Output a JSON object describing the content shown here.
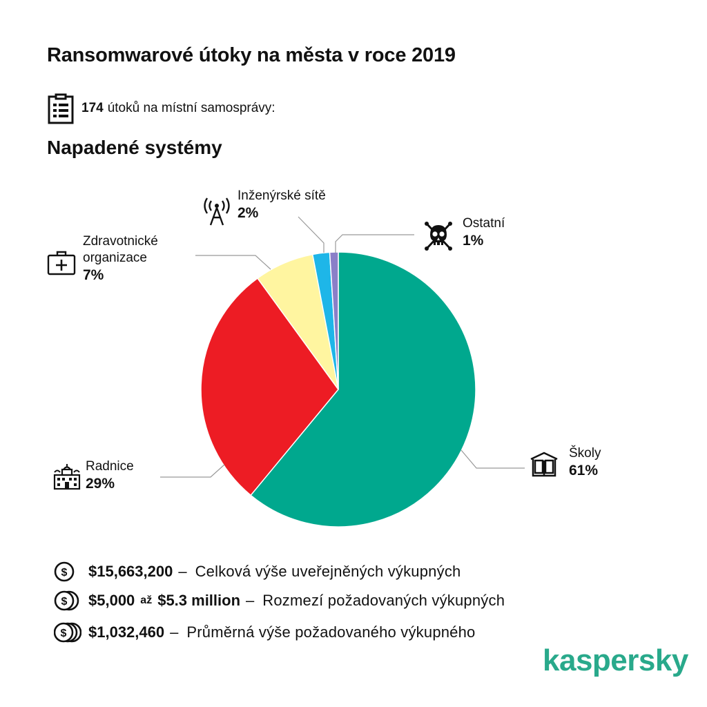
{
  "header": {
    "title": "Ransomwarové útoky na města v roce 2019",
    "attacks_count": "174",
    "attacks_text": "útoků na místní samosprávy:",
    "section_title": "Napadené systémy"
  },
  "chart_data": {
    "type": "pie",
    "start_angle_deg": 0,
    "direction": "clockwise",
    "slices": [
      {
        "label": "Školy",
        "value": 61,
        "pct_label": "61%",
        "color": "#00a88e",
        "icon": "book-icon"
      },
      {
        "label": "Radnice",
        "value": 29,
        "pct_label": "29%",
        "color": "#ed1c24",
        "icon": "city-hall-icon"
      },
      {
        "label": "Zdravotnické organizace",
        "label_lines": [
          "Zdravotnické",
          "organizace"
        ],
        "value": 7,
        "pct_label": "7%",
        "color": "#fff5a0",
        "icon": "first-aid-kit-icon"
      },
      {
        "label": "Inženýrské sítě",
        "value": 2,
        "pct_label": "2%",
        "color": "#1eb6e8",
        "icon": "antenna-icon"
      },
      {
        "label": "Ostatní",
        "value": 1,
        "pct_label": "1%",
        "color": "#8a7fc8",
        "icon": "skull-icon"
      }
    ]
  },
  "ransoms": [
    {
      "icon": "coin-single-icon",
      "amount": "$15,663,200",
      "separator": "–",
      "desc": "Celková výše uveřejněných výkupných"
    },
    {
      "icon": "coin-double-icon",
      "amount": "$5,000",
      "mid": "až",
      "amount2": "$5.3 million",
      "separator": "–",
      "desc": "Rozmezí požadovaných výkupných"
    },
    {
      "icon": "coin-triple-icon",
      "amount": "$1,032,460",
      "separator": "–",
      "desc": "Průměrná výše požadovaného výkupného"
    }
  ],
  "brand": {
    "name": "kaspersky",
    "color": "#29a98b"
  }
}
